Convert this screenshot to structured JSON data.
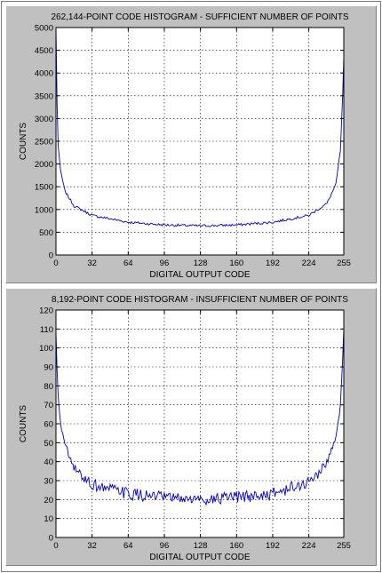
{
  "chart_data": [
    {
      "type": "line",
      "title": "262,144-POINT CODE HISTOGRAM - SUFFICIENT NUMBER OF POINTS",
      "xlabel": "DIGITAL OUTPUT CODE",
      "ylabel": "COUNTS",
      "xlim": [
        0,
        255
      ],
      "ylim": [
        0,
        5000
      ],
      "xticks": [
        0,
        32,
        64,
        96,
        128,
        160,
        192,
        224,
        255
      ],
      "yticks": [
        0,
        500,
        1000,
        1500,
        2000,
        2500,
        3000,
        3500,
        4000,
        4500,
        5000
      ],
      "grid": true,
      "series": [
        {
          "color": "#0000cc",
          "x": [
            0,
            1,
            2,
            4,
            8,
            16,
            32,
            64,
            96,
            128,
            160,
            192,
            224,
            240,
            248,
            252,
            254,
            255
          ],
          "values": [
            5000,
            3300,
            2400,
            1850,
            1400,
            1080,
            870,
            720,
            660,
            640,
            660,
            720,
            870,
            1130,
            1550,
            2300,
            3500,
            4350
          ],
          "noise": 28
        }
      ]
    },
    {
      "type": "line",
      "title": "8,192-POINT CODE HISTOGRAM - INSUFFICIENT NUMBER OF POINTS",
      "xlabel": "DIGITAL OUTPUT CODE",
      "ylabel": "COUNTS",
      "xlim": [
        0,
        255
      ],
      "ylim": [
        0,
        120
      ],
      "xticks": [
        0,
        32,
        64,
        96,
        128,
        160,
        192,
        224,
        255
      ],
      "yticks": [
        0,
        10,
        20,
        30,
        40,
        50,
        60,
        70,
        80,
        90,
        100,
        110,
        120
      ],
      "grid": true,
      "series": [
        {
          "color": "#0000cc",
          "x": [
            0,
            1,
            2,
            4,
            8,
            16,
            32,
            64,
            96,
            128,
            160,
            192,
            224,
            240,
            248,
            252,
            254,
            255
          ],
          "values": [
            108,
            88,
            72,
            62,
            48,
            36,
            28,
            23,
            21,
            20,
            21,
            23,
            29,
            39,
            52,
            70,
            92,
            110
          ],
          "noise": 3.2
        }
      ]
    }
  ]
}
